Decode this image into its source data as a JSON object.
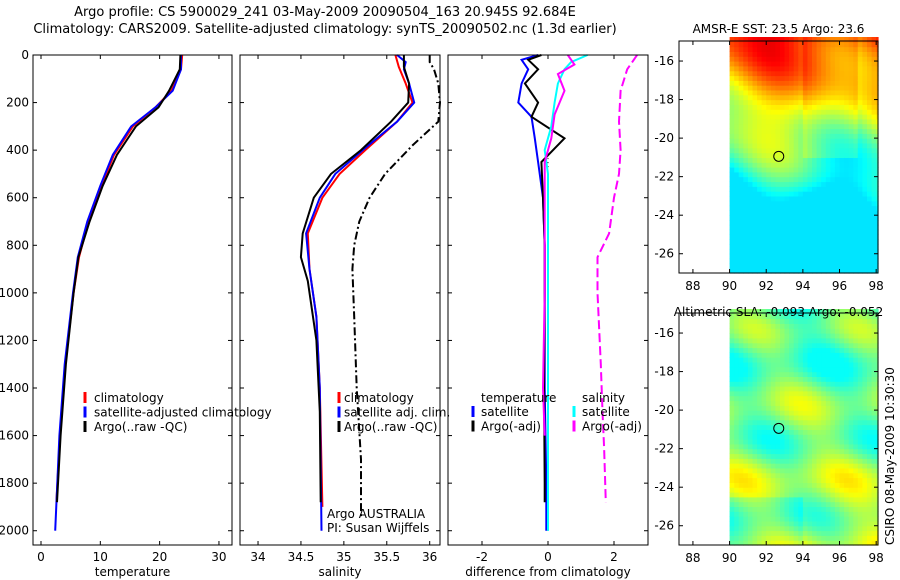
{
  "title_line1": "Argo profile: CS 5900029_241 03-May-2009 20090504_163 20.945S 92.684E",
  "title_line2": "Climatology: CARS2009. Satellite-adjusted climatology: synTS_20090502.nc (1.3d earlier)",
  "footer_stamp": "CSIRO 08-May-2009 10:30:30",
  "colors": {
    "climatology": "#ff0000",
    "satellite": "#0000ff",
    "argo": "#000000",
    "sal_satellite": "#00ffff",
    "sal_argo": "#ff00ff"
  },
  "chart_data": [
    {
      "type": "line",
      "id": "temperature",
      "xlabel": "temperature",
      "ylabel": "",
      "xlim": [
        -1.35,
        32.2
      ],
      "ylim": [
        0,
        2060
      ],
      "y_reversed": true,
      "xticks": [
        0,
        10,
        20,
        30
      ],
      "yticks": [
        0,
        200,
        400,
        600,
        800,
        1000,
        1200,
        1400,
        1600,
        1800,
        2000
      ],
      "legend": [
        "climatology",
        "satellite-adjusted climatology",
        "Argo(..raw -QC)"
      ],
      "series": [
        {
          "name": "climatology",
          "color": "#ff0000",
          "dash": "",
          "depth": [
            0,
            60,
            150,
            220,
            300,
            420,
            550,
            700,
            850,
            1000,
            1300,
            1600,
            1880
          ],
          "values": [
            23.8,
            23.6,
            22,
            19.3,
            15.5,
            12.3,
            10.2,
            8,
            6.4,
            5.5,
            4.1,
            3.2,
            2.6
          ]
        },
        {
          "name": "satellite-adjusted climatology",
          "color": "#0000ff",
          "dash": "",
          "depth": [
            0,
            60,
            150,
            220,
            300,
            420,
            550,
            700,
            850,
            1000,
            1300,
            1600,
            2000
          ],
          "values": [
            23.6,
            23.6,
            22.2,
            19.3,
            15.2,
            12.1,
            10,
            7.8,
            6.2,
            5.4,
            4,
            3.1,
            2.4
          ]
        },
        {
          "name": "Argo(..raw -QC)",
          "color": "#000000",
          "dash": "",
          "depth": [
            0,
            60,
            150,
            220,
            300,
            420,
            550,
            700,
            850,
            1000,
            1300,
            1600,
            1880
          ],
          "values": [
            23.5,
            23.4,
            21.6,
            19.8,
            16,
            12.8,
            10.4,
            8.2,
            6.3,
            5.5,
            4.2,
            3.3,
            2.7
          ]
        }
      ]
    },
    {
      "type": "line",
      "id": "salinity",
      "xlabel": "salinity",
      "xlim": [
        33.79,
        36.12
      ],
      "ylim": [
        0,
        2060
      ],
      "y_reversed": true,
      "xticks": [
        34,
        34.5,
        35,
        35.5,
        36
      ],
      "legend": [
        "climatology",
        "satellite adj. clim.",
        "Argo(..raw -QC)"
      ],
      "annotation": [
        "Argo AUSTRALIA",
        "PI: Susan Wijffels"
      ],
      "series": [
        {
          "name": "climatology",
          "color": "#ff0000",
          "dash": "",
          "depth": [
            0,
            50,
            120,
            200,
            280,
            400,
            500,
            600,
            750,
            900,
            1100,
            1400,
            1900
          ],
          "values": [
            35.6,
            35.64,
            35.72,
            35.8,
            35.62,
            35.25,
            34.95,
            34.75,
            34.58,
            34.6,
            34.68,
            34.72,
            34.75
          ]
        },
        {
          "name": "satellite adj. clim.",
          "color": "#0000ff",
          "dash": "",
          "depth": [
            0,
            30,
            60,
            120,
            200,
            280,
            400,
            500,
            600,
            750,
            900,
            1100,
            1400,
            2000
          ],
          "values": [
            35.62,
            35.72,
            35.7,
            35.76,
            35.82,
            35.62,
            35.22,
            34.9,
            34.72,
            34.56,
            34.6,
            34.68,
            34.72,
            34.74
          ]
        },
        {
          "name": "Argo(..raw -QC)",
          "color": "#000000",
          "dash": "",
          "depth": [
            0,
            50,
            120,
            200,
            280,
            400,
            500,
            600,
            750,
            850,
            950,
            1200,
            1500,
            1880
          ],
          "values": [
            35.7,
            35.7,
            35.76,
            35.75,
            35.55,
            35.2,
            34.85,
            34.65,
            34.52,
            34.5,
            34.58,
            34.68,
            34.72,
            34.73
          ]
        },
        {
          "name": "Argo raw",
          "color": "#000000",
          "dash": "8,3,2,3",
          "depth": [
            0,
            30,
            60,
            120,
            200,
            280,
            380,
            500,
            600,
            700,
            800,
            900,
            1100,
            1400,
            1700,
            1950
          ],
          "values": [
            36.0,
            36.0,
            36.05,
            36.1,
            36.12,
            36.1,
            35.8,
            35.48,
            35.3,
            35.18,
            35.12,
            35.1,
            35.12,
            35.15,
            35.2,
            35.2
          ]
        }
      ]
    },
    {
      "type": "line",
      "id": "difference",
      "xlabel": "difference from climatology",
      "xlim": [
        -3.03,
        3.03
      ],
      "ylim": [
        0,
        2060
      ],
      "y_reversed": true,
      "xticks": [
        -2,
        0,
        2
      ],
      "legend_headers": [
        "temperature",
        "salinity"
      ],
      "legend": [
        "satellite",
        "Argo(-adj)",
        "satellite",
        "Argo(-adj)"
      ],
      "series": [
        {
          "name": "temperature satellite",
          "color": "#0000ff",
          "dash": "",
          "depth": [
            0,
            20,
            60,
            120,
            200,
            260,
            350,
            450,
            600,
            800,
            1000,
            1400,
            1800,
            2000
          ],
          "values": [
            -0.3,
            -0.8,
            -0.6,
            -0.8,
            -0.9,
            -0.5,
            -0.4,
            -0.3,
            -0.15,
            -0.1,
            -0.1,
            -0.1,
            -0.05,
            -0.05
          ]
        },
        {
          "name": "temperature Argo(-adj)",
          "color": "#000000",
          "dash": "",
          "depth": [
            0,
            20,
            60,
            120,
            200,
            260,
            350,
            450,
            600,
            800,
            1000,
            1400,
            1800,
            1880
          ],
          "values": [
            -0.2,
            -0.6,
            -0.3,
            -0.7,
            -0.3,
            -0.5,
            0.5,
            -0.2,
            -0.15,
            -0.1,
            -0.1,
            -0.12,
            -0.1,
            -0.1
          ]
        },
        {
          "name": "salinity satellite",
          "color": "#00ffff",
          "dash": "",
          "depth": [
            0,
            30,
            60,
            120,
            200,
            300,
            400,
            500,
            700,
            1000,
            1400,
            1800,
            2000
          ],
          "values": [
            1.2,
            0.7,
            0.5,
            0.3,
            0.2,
            0.1,
            -0.1,
            0,
            0,
            0,
            0,
            0,
            0
          ]
        },
        {
          "name": "salinity Argo(-adj)",
          "color": "#ff00ff",
          "dash": "",
          "depth": [
            0,
            40,
            80,
            150,
            250,
            350,
            450,
            600,
            800,
            1000,
            1400,
            1600
          ],
          "values": [
            0.6,
            0.8,
            0.3,
            0.5,
            0.2,
            0.1,
            -0.1,
            -0.1,
            -0.1,
            -0.1,
            -0.15,
            -0.1
          ]
        },
        {
          "name": "salinity raw",
          "color": "#ff00ff",
          "dash": "9,4",
          "depth": [
            0,
            60,
            150,
            280,
            400,
            500,
            600,
            750,
            850,
            1000,
            1300,
            1500,
            1650,
            1880
          ],
          "values": [
            2.7,
            2.4,
            2.2,
            2.15,
            2.2,
            2.15,
            2.0,
            1.85,
            1.5,
            1.5,
            1.6,
            1.65,
            1.7,
            1.75
          ]
        }
      ]
    },
    {
      "type": "heatmap",
      "id": "sst_map",
      "title": "AMSR-E SST: 23.5 Argo: 23.6",
      "xlim": [
        87.24,
        98.1
      ],
      "ylim": [
        -27.0,
        -14.96
      ],
      "data_lon_start": 90,
      "xticks": [
        88,
        90,
        92,
        94,
        96,
        98
      ],
      "yticks": [
        -16,
        -18,
        -20,
        -22,
        -24,
        -26
      ],
      "marker": {
        "lon": 92.684,
        "lat": -20.945
      }
    },
    {
      "type": "heatmap",
      "id": "sla_map",
      "title": "Altimetric SLA: -0.093 Argo: -0.052",
      "xlim": [
        87.24,
        98.1
      ],
      "ylim": [
        -27.0,
        -14.96
      ],
      "data_lon_start": 90,
      "xticks": [
        88,
        90,
        92,
        94,
        96,
        98
      ],
      "yticks": [
        -16,
        -18,
        -20,
        -22,
        -24,
        -26
      ],
      "marker": {
        "lon": 92.684,
        "lat": -20.945
      }
    }
  ]
}
